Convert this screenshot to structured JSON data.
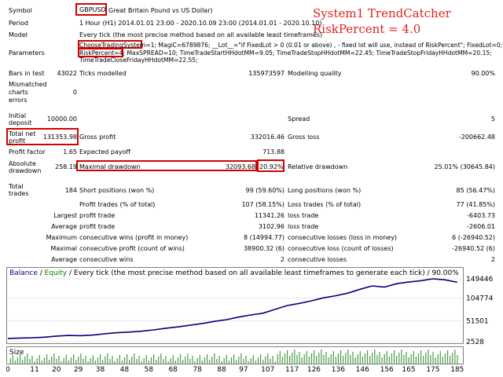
{
  "overlay": {
    "line1": "System1 TrendCatcher",
    "line2": "RiskPercent = 4.0"
  },
  "report": {
    "symbol_label": "Symbol",
    "symbol_code": "GBPUSD",
    "symbol_name": "Great Britain Pound vs US Dollar)",
    "period_label": "Period",
    "period_value": "1 Hour (H1) 2014.01.01 23:00 - 2020.10.09 23:00 (2014.01.01 - 2020.10.10)",
    "model_label": "Model",
    "model_value": "Every tick (the most precise method based on all available least timeframes)",
    "parameters_label": "Parameters",
    "params_line1_a": "ChooseTradingSystem=1",
    "params_line1_b": "; MagiC=6789876; __Lot__=\"if FixedLot > 0 (0.01 or above) , - fixed lot will use, instead of RiskPercent\"; FixedLot=0;",
    "params_line2_a": "RiskPercent=4",
    "params_line2_b": "; MaxSPREAD=10; TimeTradeStartHHdotMM=9.05; TimeTradeStopHHdotMM=22.45; TimeTradeStopFridayHHdotMM=20.15;",
    "params_line3": "TimeTradeCloseFridayHHdotMM=22.55;",
    "bars_label": "Bars in test",
    "bars_value": "43022",
    "ticks_label": "Ticks modelled",
    "ticks_value": "135973597",
    "quality_label": "Modelling quality",
    "quality_value": "90.00%",
    "mismatch_l1": "Mismatched",
    "mismatch_l2": "charts",
    "mismatch_l3": "errors",
    "mismatch_value": "0",
    "deposit_l1": "Initial",
    "deposit_l2": "deposit",
    "deposit_value": "10000.00",
    "spread_label": "Spread",
    "spread_value": "5",
    "netprofit_l1": "Total net",
    "netprofit_l2": "profit",
    "netprofit_value": "131353.98",
    "grossprofit_label": "Gross profit",
    "grossprofit_value": "332016.46",
    "grossloss_label": "Gross loss",
    "grossloss_value": "-200662.48",
    "pf_label": "Profit factor",
    "pf_value": "1.65",
    "ep_label": "Expected payoff",
    "ep_value": "713.88",
    "absdd_l1": "Absolute",
    "absdd_l2": "drawdown",
    "absdd_value": "258.19",
    "maxdd_label": "Maximal drawdown",
    "maxdd_value": "32093.68",
    "maxdd_pct": "20.92%",
    "reldd_label": "Relative drawdown",
    "reldd_value": "25.01% (30645.84)",
    "trades_l1": "Total",
    "trades_l2": "trades",
    "trades_value": "184",
    "short_label": "Short positions (won %)",
    "short_value": "99 (59.60%)",
    "long_label": "Long positions (won %)",
    "long_value": "85 (56.47%)",
    "ptrades_label": "Profit trades (% of total)",
    "ptrades_value": "107 (58.15%)",
    "ltrades_label": "Loss trades (% of total)",
    "ltrades_value": "77 (41.85%)",
    "largest_label": "Largest",
    "largest_pt_label": "profit trade",
    "largest_pt_value": "11341.26",
    "largest_lt_label": "loss trade",
    "largest_lt_value": "-6403.73",
    "average_label": "Average",
    "average_pt_label": "profit trade",
    "average_pt_value": "3102.96",
    "average_lt_label": "loss trade",
    "average_lt_value": "-2606.01",
    "maximum_label": "Maximum",
    "max_cw_label": "consecutive wins (profit in money)",
    "max_cw_value": "8 (14994.77)",
    "max_cl_label": "consecutive losses (loss in money)",
    "max_cl_value": "6 (-26940.52)",
    "maximal_label": "Maximal",
    "maximal_cp_label": "consecutive profit (count of wins)",
    "maximal_cp_value": "38900.32 (6)",
    "maximal_cl_label": "consecutive loss (count of losses)",
    "maximal_cl_value": "-26940.52 (6)",
    "average2_label": "Average",
    "avg_cw_label": "consecutive wins",
    "avg_cw_value": "2",
    "avg_cl_label": "consecutive losses",
    "avg_cl_value": "2"
  },
  "chart_data": {
    "type": "line",
    "legend_balance": "Balance",
    "legend_sep": " / ",
    "legend_equity": "Equity",
    "legend_rest": " / Every tick (the most precise method based on all available least timeframes to generate each tick) / 90.00%",
    "size_label": "Size",
    "y_ticks": [
      149446,
      104774,
      51501,
      2528
    ],
    "x_ticks": [
      0,
      11,
      20,
      29,
      38,
      48,
      58,
      68,
      78,
      88,
      97,
      107,
      117,
      126,
      136,
      146,
      156,
      165,
      175,
      185
    ],
    "balance_color": "#000080",
    "equity_color": "#008000",
    "size_bar_color": "#4a9a4a",
    "series": [
      {
        "name": "Balance",
        "x": [
          0,
          5,
          10,
          15,
          20,
          25,
          30,
          35,
          40,
          45,
          50,
          55,
          60,
          65,
          70,
          75,
          80,
          85,
          90,
          95,
          100,
          105,
          110,
          115,
          120,
          125,
          130,
          135,
          140,
          145,
          150,
          155,
          160,
          165,
          170,
          175,
          180,
          185
        ],
        "y": [
          10000,
          11000,
          11500,
          13000,
          15500,
          17000,
          16500,
          18000,
          21000,
          23500,
          25000,
          27000,
          30000,
          34000,
          37000,
          41000,
          45000,
          50000,
          54000,
          60000,
          65000,
          69000,
          78000,
          87000,
          92000,
          98000,
          105000,
          110000,
          116000,
          125000,
          133000,
          130000,
          138000,
          142000,
          145000,
          149446,
          147000,
          141353
        ]
      }
    ]
  }
}
